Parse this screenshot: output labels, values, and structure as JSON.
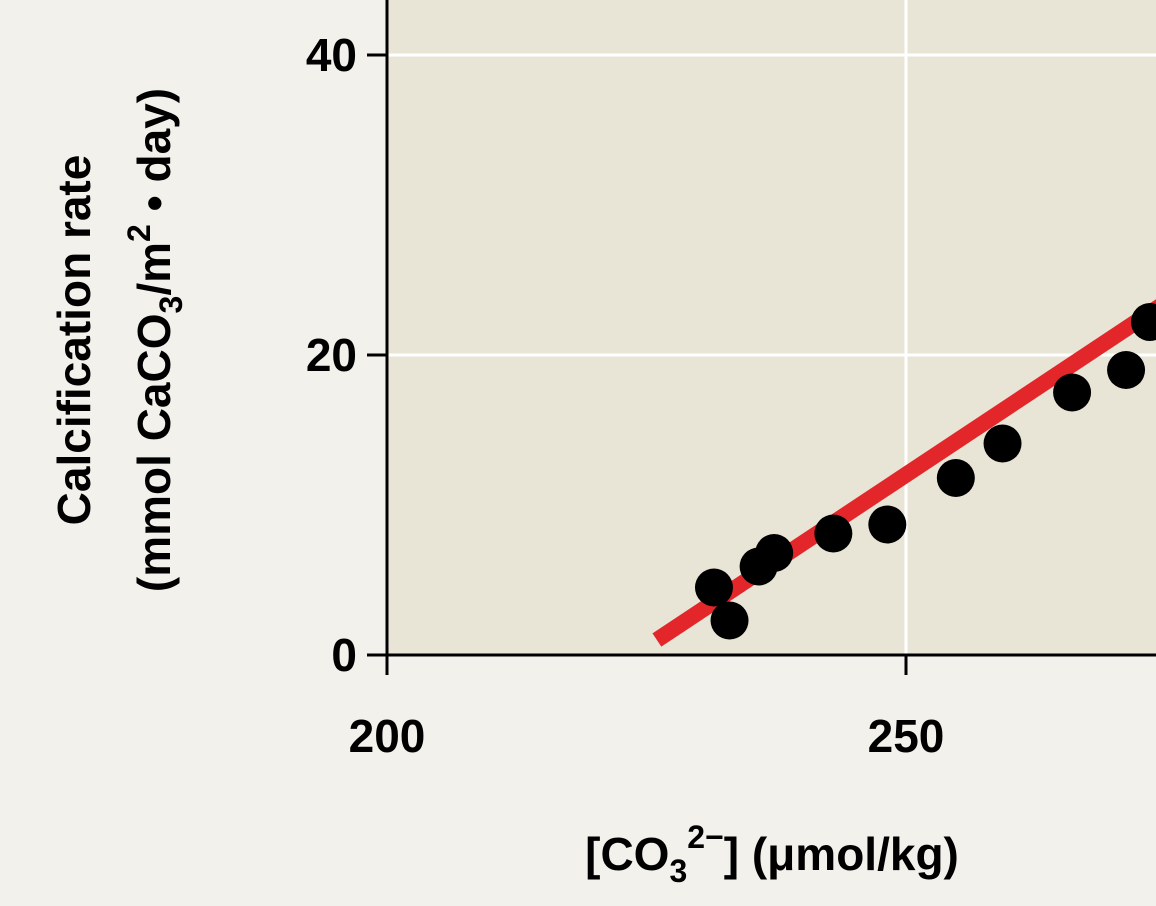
{
  "chart_data": {
    "type": "scatter",
    "xlabel": {
      "main": "[CO",
      "sub": "3",
      "sup": "2−",
      "tail": "] (μmol/kg)"
    },
    "ylabel": {
      "line1": "Calcification rate",
      "line2": {
        "a": "(mmol CaCO",
        "sub": "3",
        "b": "/m",
        "sup": "2",
        "c": " • day)"
      }
    },
    "xlim": [
      200,
      275
    ],
    "ylim": [
      0,
      44
    ],
    "x_ticks": [
      200,
      250
    ],
    "x_tick_labels": [
      "200",
      "250"
    ],
    "y_ticks": [
      0,
      20,
      40
    ],
    "y_tick_labels": [
      "0",
      "20",
      "40"
    ],
    "grid": true,
    "points": [
      {
        "x": 231.5,
        "y": 4.5
      },
      {
        "x": 233.0,
        "y": 2.3
      },
      {
        "x": 235.8,
        "y": 5.9
      },
      {
        "x": 237.3,
        "y": 6.8
      },
      {
        "x": 243.0,
        "y": 8.1
      },
      {
        "x": 248.2,
        "y": 8.7
      },
      {
        "x": 254.8,
        "y": 11.8
      },
      {
        "x": 259.3,
        "y": 14.1
      },
      {
        "x": 266.0,
        "y": 17.5
      },
      {
        "x": 271.2,
        "y": 19.0
      },
      {
        "x": 273.5,
        "y": 22.2
      }
    ],
    "fit_line": {
      "x": [
        226.0,
        275.0
      ],
      "y": [
        1.0,
        23.5
      ]
    },
    "colors": {
      "plot_background": "#e8e4d6",
      "page_background": "#f3f1eb",
      "grid": "#ffffff",
      "points": "#000000",
      "fit_line": "#e3262a"
    }
  }
}
